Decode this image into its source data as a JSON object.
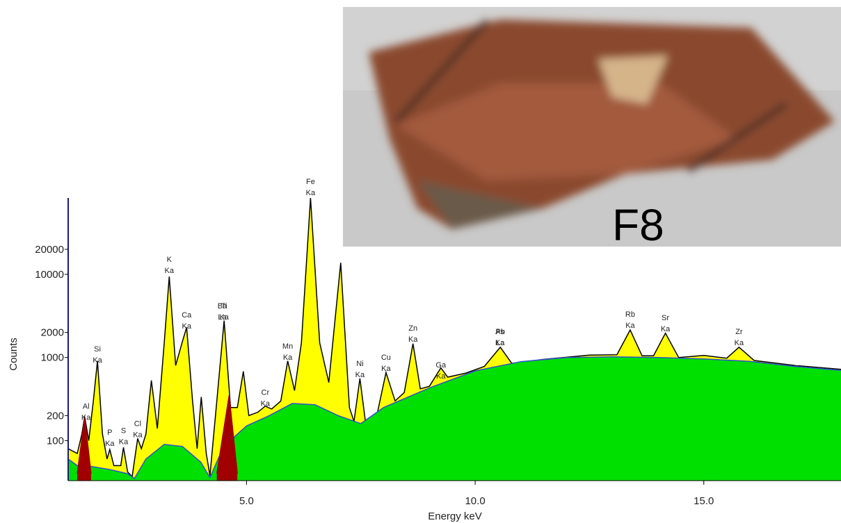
{
  "chart_data": {
    "type": "area",
    "log_y": true,
    "x_label": "Energy keV",
    "y_label": "Counts",
    "xlim": [
      1.1,
      18
    ],
    "xticks": [
      {
        "value": 5,
        "label": "5.0"
      },
      {
        "value": 10,
        "label": "10.0"
      },
      {
        "value": 15,
        "label": "15.0"
      }
    ],
    "ylim": [
      33,
      83000
    ],
    "yticks": [
      100,
      200,
      1000,
      2000,
      10000,
      20000
    ],
    "series": [
      {
        "color": "#ffff00",
        "outline": "#000000",
        "x": [
          1.1,
          1.3,
          1.4,
          1.46,
          1.55,
          1.65,
          1.74,
          1.85,
          1.95,
          2.01,
          2.1,
          2.25,
          2.31,
          2.4,
          2.5,
          2.62,
          2.7,
          2.8,
          2.92,
          3.05,
          3.2,
          3.31,
          3.45,
          3.59,
          3.69,
          3.82,
          3.92,
          4.01,
          4.12,
          4.2,
          4.35,
          4.51,
          4.65,
          4.8,
          4.93,
          5.05,
          5.25,
          5.41,
          5.55,
          5.75,
          5.9,
          6.05,
          6.2,
          6.4,
          6.6,
          6.8,
          7.06,
          7.25,
          7.35,
          7.48,
          7.6,
          7.85,
          8.05,
          8.25,
          8.45,
          8.64,
          8.8,
          9.0,
          9.25,
          9.4,
          9.8,
          10.2,
          10.55,
          10.8,
          11.5,
          12.5,
          13.1,
          13.39,
          13.65,
          13.9,
          14.16,
          14.45,
          15.0,
          15.5,
          15.77,
          16.1,
          17.0,
          18.0
        ],
        "values": [
          80,
          70,
          120,
          195,
          100,
          300,
          910,
          120,
          60,
          78,
          50,
          50,
          83,
          42,
          37,
          106,
          80,
          120,
          530,
          140,
          1500,
          9400,
          800,
          1500,
          2300,
          300,
          80,
          335,
          70,
          38,
          300,
          2780,
          250,
          250,
          680,
          200,
          220,
          260,
          240,
          300,
          910,
          400,
          1500,
          83000,
          1500,
          500,
          13800,
          250,
          170,
          560,
          170,
          200,
          660,
          300,
          380,
          1470,
          420,
          450,
          750,
          580,
          650,
          780,
          1330,
          850,
          950,
          1070,
          1080,
          2140,
          1050,
          1050,
          1960,
          1000,
          1060,
          980,
          1330,
          920,
          800,
          720
        ]
      },
      {
        "color": "#00e000",
        "outline": "#3050d0",
        "x": [
          1.1,
          1.3,
          1.5,
          2.0,
          2.4,
          2.55,
          2.8,
          3.2,
          3.6,
          4.0,
          4.2,
          4.5,
          5.0,
          5.5,
          6.0,
          6.5,
          7.0,
          7.5,
          8.0,
          9.0,
          10.0,
          11.0,
          12.0,
          13.0,
          14.0,
          15.0,
          16.0,
          17.0,
          18.0
        ],
        "values": [
          60,
          50,
          50,
          45,
          40,
          35,
          60,
          90,
          85,
          55,
          36,
          85,
          150,
          200,
          280,
          270,
          200,
          160,
          250,
          430,
          690,
          890,
          1000,
          1020,
          1000,
          960,
          900,
          780,
          700
        ]
      },
      {
        "color": "#a00000",
        "outline": "#a00000",
        "x": [
          1.3,
          1.46,
          1.6,
          null,
          4.35,
          4.62,
          4.8
        ],
        "values": [
          40,
          190,
          40,
          null,
          40,
          350,
          40
        ]
      }
    ],
    "annotations": [
      {
        "lines": [
          "Al",
          "Ka"
        ],
        "x": 1.49,
        "y": 178
      },
      {
        "lines": [
          "Si",
          "Ka"
        ],
        "x": 1.74,
        "y": 870
      },
      {
        "lines": [
          "P",
          "Ka"
        ],
        "x": 2.01,
        "y": 86
      },
      {
        "lines": [
          "S",
          "Ka"
        ],
        "x": 2.31,
        "y": 91
      },
      {
        "lines": [
          "Cl",
          "Ka"
        ],
        "x": 2.62,
        "y": 110
      },
      {
        "lines": [
          "K",
          "Ka"
        ],
        "x": 3.31,
        "y": 10400
      },
      {
        "lines": [
          "Ca",
          "Ka"
        ],
        "x": 3.69,
        "y": 2240
      },
      {
        "lines": [
          "Ti",
          "Ka"
        ],
        "x": 4.51,
        "y": 2870
      },
      {
        "lines": [
          "Ba",
          "La"
        ],
        "x": 4.47,
        "y": 2870
      },
      {
        "lines": [
          "Cr",
          "Ka"
        ],
        "x": 5.41,
        "y": 260
      },
      {
        "lines": [
          "Mn",
          "Ka"
        ],
        "x": 5.9,
        "y": 940
      },
      {
        "lines": [
          "Fe",
          "Ka"
        ],
        "x": 6.4,
        "y": 90000
      },
      {
        "lines": [
          "Ni",
          "Ka"
        ],
        "x": 7.48,
        "y": 580
      },
      {
        "lines": [
          "Cu",
          "Ka"
        ],
        "x": 8.05,
        "y": 690
      },
      {
        "lines": [
          "Zn",
          "Ka"
        ],
        "x": 8.64,
        "y": 1550
      },
      {
        "lines": [
          "Ga",
          "Ka"
        ],
        "x": 9.25,
        "y": 560
      },
      {
        "lines": [
          "As",
          "Ka"
        ],
        "x": 10.54,
        "y": 1410
      },
      {
        "lines": [
          "Pb",
          "La"
        ],
        "x": 10.55,
        "y": 1410
      },
      {
        "lines": [
          "Rb",
          "Ka"
        ],
        "x": 13.39,
        "y": 2280
      },
      {
        "lines": [
          "Sr",
          "Ka"
        ],
        "x": 14.16,
        "y": 2070
      },
      {
        "lines": [
          "Zr",
          "Ka"
        ],
        "x": 15.77,
        "y": 1410
      }
    ]
  },
  "photo": {
    "label": "F8"
  }
}
